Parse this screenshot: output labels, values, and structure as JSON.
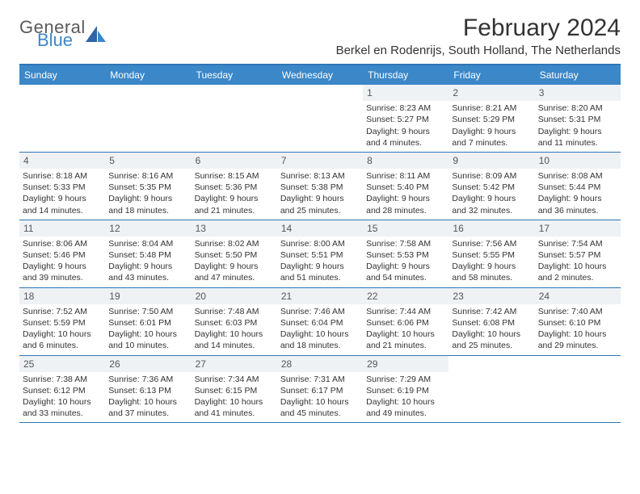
{
  "logo": {
    "general": "General",
    "blue": "Blue"
  },
  "title": "February 2024",
  "location": "Berkel en Rodenrijs, South Holland, The Netherlands",
  "colors": {
    "header_bg": "#3b87c8",
    "header_text": "#ffffff",
    "border": "#2f75b5",
    "daynum_bg": "#eef2f5",
    "text": "#333333"
  },
  "day_headers": [
    "Sunday",
    "Monday",
    "Tuesday",
    "Wednesday",
    "Thursday",
    "Friday",
    "Saturday"
  ],
  "weeks": [
    [
      {
        "n": "",
        "sr": "",
        "ss": "",
        "d1": "",
        "d2": ""
      },
      {
        "n": "",
        "sr": "",
        "ss": "",
        "d1": "",
        "d2": ""
      },
      {
        "n": "",
        "sr": "",
        "ss": "",
        "d1": "",
        "d2": ""
      },
      {
        "n": "",
        "sr": "",
        "ss": "",
        "d1": "",
        "d2": ""
      },
      {
        "n": "1",
        "sr": "Sunrise: 8:23 AM",
        "ss": "Sunset: 5:27 PM",
        "d1": "Daylight: 9 hours",
        "d2": "and 4 minutes."
      },
      {
        "n": "2",
        "sr": "Sunrise: 8:21 AM",
        "ss": "Sunset: 5:29 PM",
        "d1": "Daylight: 9 hours",
        "d2": "and 7 minutes."
      },
      {
        "n": "3",
        "sr": "Sunrise: 8:20 AM",
        "ss": "Sunset: 5:31 PM",
        "d1": "Daylight: 9 hours",
        "d2": "and 11 minutes."
      }
    ],
    [
      {
        "n": "4",
        "sr": "Sunrise: 8:18 AM",
        "ss": "Sunset: 5:33 PM",
        "d1": "Daylight: 9 hours",
        "d2": "and 14 minutes."
      },
      {
        "n": "5",
        "sr": "Sunrise: 8:16 AM",
        "ss": "Sunset: 5:35 PM",
        "d1": "Daylight: 9 hours",
        "d2": "and 18 minutes."
      },
      {
        "n": "6",
        "sr": "Sunrise: 8:15 AM",
        "ss": "Sunset: 5:36 PM",
        "d1": "Daylight: 9 hours",
        "d2": "and 21 minutes."
      },
      {
        "n": "7",
        "sr": "Sunrise: 8:13 AM",
        "ss": "Sunset: 5:38 PM",
        "d1": "Daylight: 9 hours",
        "d2": "and 25 minutes."
      },
      {
        "n": "8",
        "sr": "Sunrise: 8:11 AM",
        "ss": "Sunset: 5:40 PM",
        "d1": "Daylight: 9 hours",
        "d2": "and 28 minutes."
      },
      {
        "n": "9",
        "sr": "Sunrise: 8:09 AM",
        "ss": "Sunset: 5:42 PM",
        "d1": "Daylight: 9 hours",
        "d2": "and 32 minutes."
      },
      {
        "n": "10",
        "sr": "Sunrise: 8:08 AM",
        "ss": "Sunset: 5:44 PM",
        "d1": "Daylight: 9 hours",
        "d2": "and 36 minutes."
      }
    ],
    [
      {
        "n": "11",
        "sr": "Sunrise: 8:06 AM",
        "ss": "Sunset: 5:46 PM",
        "d1": "Daylight: 9 hours",
        "d2": "and 39 minutes."
      },
      {
        "n": "12",
        "sr": "Sunrise: 8:04 AM",
        "ss": "Sunset: 5:48 PM",
        "d1": "Daylight: 9 hours",
        "d2": "and 43 minutes."
      },
      {
        "n": "13",
        "sr": "Sunrise: 8:02 AM",
        "ss": "Sunset: 5:50 PM",
        "d1": "Daylight: 9 hours",
        "d2": "and 47 minutes."
      },
      {
        "n": "14",
        "sr": "Sunrise: 8:00 AM",
        "ss": "Sunset: 5:51 PM",
        "d1": "Daylight: 9 hours",
        "d2": "and 51 minutes."
      },
      {
        "n": "15",
        "sr": "Sunrise: 7:58 AM",
        "ss": "Sunset: 5:53 PM",
        "d1": "Daylight: 9 hours",
        "d2": "and 54 minutes."
      },
      {
        "n": "16",
        "sr": "Sunrise: 7:56 AM",
        "ss": "Sunset: 5:55 PM",
        "d1": "Daylight: 9 hours",
        "d2": "and 58 minutes."
      },
      {
        "n": "17",
        "sr": "Sunrise: 7:54 AM",
        "ss": "Sunset: 5:57 PM",
        "d1": "Daylight: 10 hours",
        "d2": "and 2 minutes."
      }
    ],
    [
      {
        "n": "18",
        "sr": "Sunrise: 7:52 AM",
        "ss": "Sunset: 5:59 PM",
        "d1": "Daylight: 10 hours",
        "d2": "and 6 minutes."
      },
      {
        "n": "19",
        "sr": "Sunrise: 7:50 AM",
        "ss": "Sunset: 6:01 PM",
        "d1": "Daylight: 10 hours",
        "d2": "and 10 minutes."
      },
      {
        "n": "20",
        "sr": "Sunrise: 7:48 AM",
        "ss": "Sunset: 6:03 PM",
        "d1": "Daylight: 10 hours",
        "d2": "and 14 minutes."
      },
      {
        "n": "21",
        "sr": "Sunrise: 7:46 AM",
        "ss": "Sunset: 6:04 PM",
        "d1": "Daylight: 10 hours",
        "d2": "and 18 minutes."
      },
      {
        "n": "22",
        "sr": "Sunrise: 7:44 AM",
        "ss": "Sunset: 6:06 PM",
        "d1": "Daylight: 10 hours",
        "d2": "and 21 minutes."
      },
      {
        "n": "23",
        "sr": "Sunrise: 7:42 AM",
        "ss": "Sunset: 6:08 PM",
        "d1": "Daylight: 10 hours",
        "d2": "and 25 minutes."
      },
      {
        "n": "24",
        "sr": "Sunrise: 7:40 AM",
        "ss": "Sunset: 6:10 PM",
        "d1": "Daylight: 10 hours",
        "d2": "and 29 minutes."
      }
    ],
    [
      {
        "n": "25",
        "sr": "Sunrise: 7:38 AM",
        "ss": "Sunset: 6:12 PM",
        "d1": "Daylight: 10 hours",
        "d2": "and 33 minutes."
      },
      {
        "n": "26",
        "sr": "Sunrise: 7:36 AM",
        "ss": "Sunset: 6:13 PM",
        "d1": "Daylight: 10 hours",
        "d2": "and 37 minutes."
      },
      {
        "n": "27",
        "sr": "Sunrise: 7:34 AM",
        "ss": "Sunset: 6:15 PM",
        "d1": "Daylight: 10 hours",
        "d2": "and 41 minutes."
      },
      {
        "n": "28",
        "sr": "Sunrise: 7:31 AM",
        "ss": "Sunset: 6:17 PM",
        "d1": "Daylight: 10 hours",
        "d2": "and 45 minutes."
      },
      {
        "n": "29",
        "sr": "Sunrise: 7:29 AM",
        "ss": "Sunset: 6:19 PM",
        "d1": "Daylight: 10 hours",
        "d2": "and 49 minutes."
      },
      {
        "n": "",
        "sr": "",
        "ss": "",
        "d1": "",
        "d2": ""
      },
      {
        "n": "",
        "sr": "",
        "ss": "",
        "d1": "",
        "d2": ""
      }
    ]
  ]
}
